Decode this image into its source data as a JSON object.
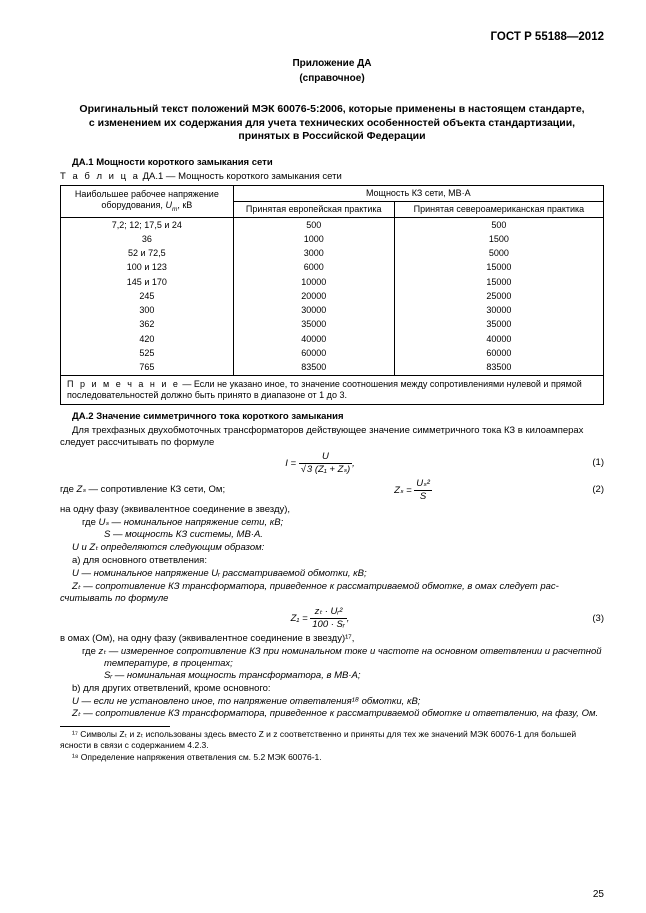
{
  "header": {
    "doc_id": "ГОСТ Р 55188—2012"
  },
  "appendix": {
    "label": "Приложение ДА",
    "sub": "(справочное)"
  },
  "title": {
    "l1": "Оригинальный текст положений МЭК 60076-5:2006, которые применены в настоящем стандарте,",
    "l2": "с изменением их содержания для учета технических особенностей объекта стандартизации,",
    "l3": "принятых в Российской Федерации"
  },
  "da1": {
    "heading": "ДА.1  Мощности короткого замыкания сети",
    "table_caption_prefix": "Т а б л и ц а",
    "table_caption": "  ДА.1  —  Мощность короткого замыкания сети",
    "col_a_l1": "Наибольшее рабочее напряжение",
    "col_a_l2": "оборудования, ",
    "col_a_sym": "U",
    "col_a_sub": "m",
    "col_a_unit": ", кВ",
    "col_b": "Мощность КЗ сети, МВ·А",
    "col_b1": "Принятая европейская практика",
    "col_b2": "Принятая североамериканская практика",
    "rows": [
      {
        "u": "7,2; 12; 17,5 и 24",
        "eu": "500",
        "na": "500"
      },
      {
        "u": "36",
        "eu": "1000",
        "na": "1500"
      },
      {
        "u": "52 и 72,5",
        "eu": "3000",
        "na": "5000"
      },
      {
        "u": "100 и 123",
        "eu": "6000",
        "na": "15000"
      },
      {
        "u": "145 и 170",
        "eu": "10000",
        "na": "15000"
      },
      {
        "u": "245",
        "eu": "20000",
        "na": "25000"
      },
      {
        "u": "300",
        "eu": "30000",
        "na": "30000"
      },
      {
        "u": "362",
        "eu": "35000",
        "na": "35000"
      },
      {
        "u": "420",
        "eu": "40000",
        "na": "40000"
      },
      {
        "u": "525",
        "eu": "60000",
        "na": "60000"
      },
      {
        "u": "765",
        "eu": "83500",
        "na": "83500"
      }
    ],
    "note_prefix": "П р и м е ч а н и е",
    "note": "  —  Если не указано иное, то значение соотношения между сопротивлениями нулевой и прямой последовательностей должно быть принято в диапазоне от 1 до 3."
  },
  "da2": {
    "heading": "ДА.2  Значение симметричного тока короткого замыкания",
    "intro": "Для трехфазных двухобмоточных трансформаторов действующее значение симметричного тока КЗ в кило­амперах следует рассчитывать по формуле",
    "eq1_left": "I =",
    "eq1_top": "U",
    "eq1_bot": "3 (Z₁ + Zₛ)",
    "eq1_num": "(1)",
    "where_zs": "где ",
    "where_zs_sym": "Zₛ",
    "where_zs_txt": " — сопротивление КЗ сети, Ом;",
    "eq2_left": "Zₛ =",
    "eq2_top": "Uₛ²",
    "eq2_bot": "S",
    "eq2_num": "(2)",
    "per_phase": "на одну фазу (эквивалентное соединение в звезду),",
    "l_us": "Uₛ — номинальное напряжение сети, кВ;",
    "l_s": "S  — мощность КЗ системы, МВ·А.",
    "uz": "U и Zₜ определяются следующим образом:",
    "a": "а) для основного ответвления:",
    "a_u": "U  — номинальное напряжение Uᵣ рассматриваемой обмотки, кВ;",
    "a_z": "Zₜ  — сопротивление КЗ трансформатора, приведенное к рассматриваемой обмотке, в омах следует рас­считывать по формуле",
    "eq3_left": "Z₁ =",
    "eq3_top": "zₜ · Uᵣ²",
    "eq3_bot": "100 · Sᵣ",
    "eq3_num": "(3)",
    "eq3_after": "в омах (Ом), на одну фазу (эквивалентное соединение в звезду)¹⁷,",
    "l_zt": "zₜ — измеренное сопротивление КЗ при номинальном токе и частоте на основном ответвлении и расчетной температуре, в процентах;",
    "l_sr": "Sᵣ — номинальная мощность трансформатора, в МВ·А;",
    "b": "b) для других ответвлений, кроме основного:",
    "b_u": "U  — если не установлено иное, то напряжение ответвления¹⁸ обмотки, кВ;",
    "b_z": "Zₜ  — сопротивление КЗ трансформатора, приведенное к рассматриваемой обмотке и ответвлению, на фазу, Ом.",
    "where_word": "где  "
  },
  "footnotes": {
    "f17": "¹⁷ Символы  Zₜ и zₜ использованы здесь вместо Z и z соответственно и приняты для тех же значений МЭК 60076-1 для большей ясности в связи с содержанием 4.2.3.",
    "f18": "¹⁸ Определение напряжения ответвления см. 5.2 МЭК 60076-1."
  },
  "page_number": "25"
}
